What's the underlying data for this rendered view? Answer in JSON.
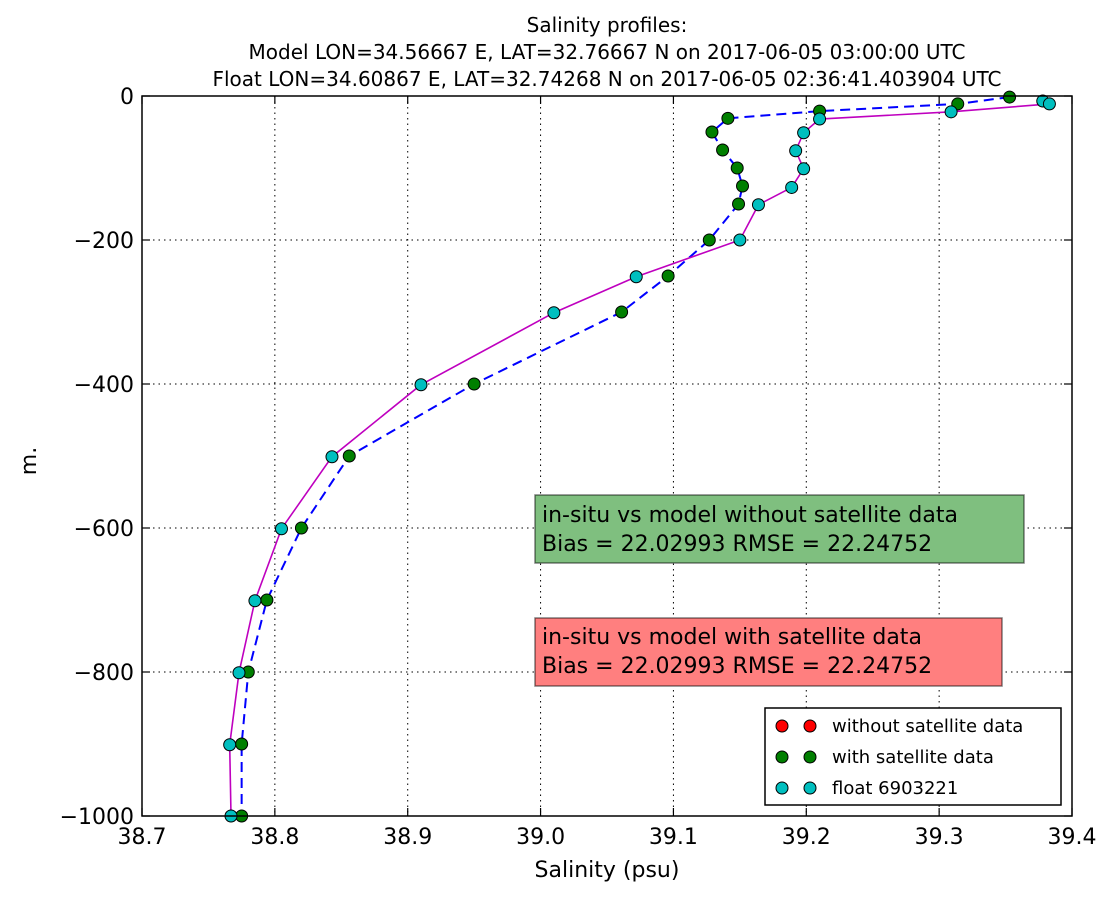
{
  "chart_data": {
    "type": "line",
    "title_lines": [
      "Salinity profiles:",
      "Model LON=34.56667 E, LAT=32.76667 N on 2017-06-05 03:00:00 UTC",
      "Float LON=34.60867 E, LAT=32.74268 N on 2017-06-05 02:36:41.403904 UTC"
    ],
    "xlabel": "Salinity (psu)",
    "ylabel": "m.",
    "xlim": [
      38.7,
      39.4
    ],
    "ylim": [
      -1000,
      0
    ],
    "xticks": [
      "38.7",
      "38.8",
      "38.9",
      "39.0",
      "39.1",
      "39.2",
      "39.3",
      "39.4"
    ],
    "yticks": [
      "0",
      "−200",
      "−400",
      "−600",
      "−800",
      "−1000"
    ],
    "grid": true,
    "legend_position": "lower-right",
    "series": [
      {
        "name": "without satellite data",
        "color": "#ff0000",
        "marker": "circle",
        "line": "none",
        "points": []
      },
      {
        "name": "with satellite data",
        "color": "#007f00",
        "marker": "circle",
        "line": "dashed",
        "line_color": "#0000ff",
        "points": [
          [
            39.353,
            -1.5
          ],
          [
            39.314,
            -11
          ],
          [
            39.21,
            -21
          ],
          [
            39.141,
            -31
          ],
          [
            39.129,
            -50
          ],
          [
            39.137,
            -75
          ],
          [
            39.148,
            -100
          ],
          [
            39.152,
            -125
          ],
          [
            39.149,
            -150
          ],
          [
            39.127,
            -200
          ],
          [
            39.096,
            -250
          ],
          [
            39.061,
            -300
          ],
          [
            38.95,
            -400
          ],
          [
            38.856,
            -500
          ],
          [
            38.82,
            -600
          ],
          [
            38.794,
            -700
          ],
          [
            38.78,
            -800
          ],
          [
            38.775,
            -900
          ],
          [
            38.775,
            -1000
          ]
        ]
      },
      {
        "name": "float 6903221",
        "color": "#00bfbf",
        "marker": "circle",
        "line": "solid",
        "line_color": "#bf00bf",
        "points": [
          [
            39.378,
            -7
          ],
          [
            39.383,
            -11
          ],
          [
            39.309,
            -22
          ],
          [
            39.21,
            -32
          ],
          [
            39.198,
            -51
          ],
          [
            39.192,
            -76
          ],
          [
            39.198,
            -101
          ],
          [
            39.189,
            -127
          ],
          [
            39.164,
            -151
          ],
          [
            39.15,
            -200
          ],
          [
            39.072,
            -251
          ],
          [
            39.01,
            -301
          ],
          [
            38.91,
            -401
          ],
          [
            38.843,
            -501
          ],
          [
            38.805,
            -601
          ],
          [
            38.785,
            -701
          ],
          [
            38.773,
            -801
          ],
          [
            38.766,
            -901
          ],
          [
            38.767,
            -1000
          ]
        ]
      }
    ],
    "annotations": [
      {
        "id": "without",
        "lines": [
          "in-situ vs model without satellite data",
          "Bias = 22.02993 RMSE = 22.24752"
        ],
        "color": "#7fbf7f"
      },
      {
        "id": "with",
        "lines": [
          "in-situ vs model with satellite data",
          "Bias = 22.02993 RMSE = 22.24752"
        ],
        "color": "#ff7f7f"
      }
    ]
  }
}
